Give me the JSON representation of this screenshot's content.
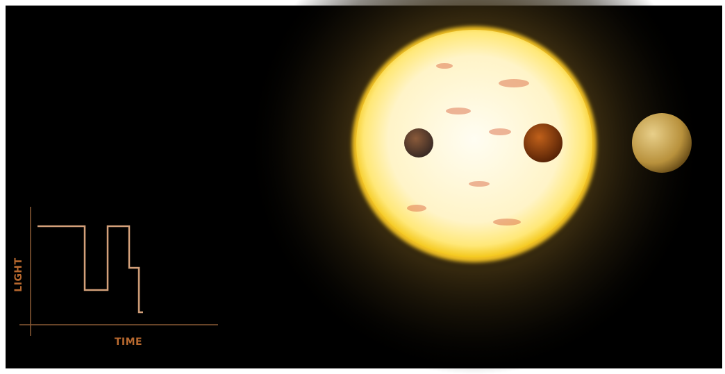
{
  "graph": {
    "y_label": "LIGHT",
    "x_label": "TIME"
  }
}
